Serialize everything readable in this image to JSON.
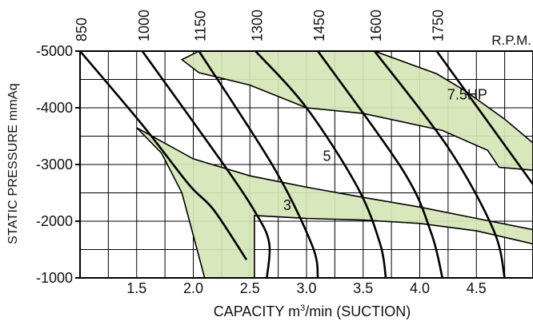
{
  "chart_data": {
    "type": "area",
    "xlabel": "CAPACITY m³/min (SUCTION)",
    "xlabel_parts": {
      "pre": "CAPACITY m",
      "sup": "3",
      "post": "/min (SUCTION)"
    },
    "ylabel": "STATIC PRESSURE mmAq",
    "xlim": [
      1.0,
      5.0
    ],
    "ylim": [
      -1000,
      -5000
    ],
    "x_ticks": [
      "1.5",
      "2.0",
      "2.5",
      "3.0",
      "3.5",
      "4.0",
      "4.5"
    ],
    "y_ticks": [
      "-5000",
      "-4000",
      "-3000",
      "-2000",
      "-1000"
    ],
    "grid": true,
    "rpm_unit_label": "R.P.M.",
    "rpm_curves": [
      {
        "rpm": "850",
        "points": [
          [
            1.0,
            -5000
          ],
          [
            1.55,
            -3700
          ],
          [
            1.96,
            -2650
          ],
          [
            2.18,
            -2200
          ],
          [
            2.47,
            -1320
          ]
        ]
      },
      {
        "rpm": "1000",
        "points": [
          [
            1.55,
            -5000
          ],
          [
            2.25,
            -3050
          ],
          [
            2.55,
            -2150
          ],
          [
            2.67,
            -1620
          ],
          [
            2.65,
            -1000
          ]
        ]
      },
      {
        "rpm": "1150",
        "points": [
          [
            2.05,
            -5000
          ],
          [
            2.71,
            -2950
          ],
          [
            3.05,
            -1570
          ],
          [
            3.1,
            -1000
          ]
        ]
      },
      {
        "rpm": "1300",
        "points": [
          [
            2.55,
            -5000
          ],
          [
            3.0,
            -4000
          ],
          [
            3.45,
            -2600
          ],
          [
            3.65,
            -1600
          ],
          [
            3.7,
            -1000
          ]
        ]
      },
      {
        "rpm": "1450",
        "points": [
          [
            3.1,
            -5000
          ],
          [
            3.85,
            -2900
          ],
          [
            4.1,
            -1800
          ],
          [
            4.2,
            -1000
          ]
        ]
      },
      {
        "rpm": "1600",
        "points": [
          [
            3.6,
            -5000
          ],
          [
            4.25,
            -3300
          ],
          [
            4.65,
            -1850
          ],
          [
            4.75,
            -1000
          ]
        ]
      },
      {
        "rpm": "1750",
        "points": [
          [
            4.15,
            -5000
          ],
          [
            5.0,
            -2650
          ]
        ]
      }
    ],
    "regions": [
      {
        "label": "3",
        "label_at": [
          2.83,
          -2280
        ],
        "boundary": [
          [
            1.5,
            -3650
          ],
          [
            2.0,
            -3100
          ],
          [
            2.5,
            -2800
          ],
          [
            3.0,
            -2600
          ],
          [
            3.5,
            -2420
          ],
          [
            4.0,
            -2250
          ],
          [
            4.5,
            -2050
          ],
          [
            5.0,
            -1850
          ],
          [
            5.0,
            -1600
          ],
          [
            4.5,
            -1830
          ],
          [
            4.0,
            -1960
          ],
          [
            3.5,
            -2020
          ],
          [
            3.0,
            -2050
          ],
          [
            2.54,
            -2100
          ],
          [
            2.54,
            -1000
          ],
          [
            2.1,
            -1000
          ],
          [
            1.9,
            -2500
          ],
          [
            1.72,
            -3200
          ]
        ]
      },
      {
        "label": "7.5HP",
        "label_at": [
          4.42,
          -4230
        ],
        "boundary": [
          [
            2.05,
            -5000
          ],
          [
            3.6,
            -5000
          ],
          [
            4.15,
            -4600
          ],
          [
            4.4,
            -4300
          ],
          [
            4.75,
            -3800
          ],
          [
            5.0,
            -3380
          ],
          [
            5.0,
            -2900
          ],
          [
            4.7,
            -2950
          ],
          [
            4.6,
            -3250
          ],
          [
            4.2,
            -3600
          ],
          [
            3.5,
            -3900
          ],
          [
            3.0,
            -4000
          ],
          [
            2.5,
            -4400
          ],
          [
            2.05,
            -4620
          ],
          [
            1.9,
            -4850
          ]
        ]
      }
    ],
    "annotations": [
      {
        "text": "5",
        "at": [
          3.18,
          -3150
        ]
      }
    ]
  }
}
